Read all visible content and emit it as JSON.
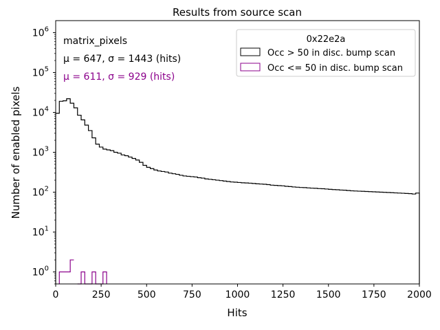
{
  "chart_data": {
    "type": "histogram",
    "title": "Results from source scan",
    "xlabel": "Hits",
    "ylabel": "Number of enabled pixels",
    "xlim": [
      0,
      2000
    ],
    "ylim": [
      0.5,
      2000000
    ],
    "yscale": "log",
    "x_ticks": [
      0,
      250,
      500,
      750,
      1000,
      1250,
      1500,
      1750,
      2000
    ],
    "x_tick_labels": [
      "0",
      "250",
      "500",
      "750",
      "1000",
      "1250",
      "1500",
      "1750",
      "2000"
    ],
    "y_ticks": [
      1,
      10,
      100,
      1000,
      10000,
      100000,
      1000000
    ],
    "y_tick_base": "10",
    "y_tick_exponents": [
      "0",
      "1",
      "2",
      "3",
      "4",
      "5",
      "6"
    ],
    "bin_width": 20,
    "annotations": {
      "name": "matrix_pixels",
      "stats_high": "μ = 647, σ = 1443 (hits)",
      "stats_low": "μ = 611, σ = 929 (hits)"
    },
    "legend": {
      "title": "0x22e2a",
      "position": "top-right"
    },
    "series": [
      {
        "name": "Occ > 50 in disc. bump scan",
        "color": "#000000",
        "bin_edges_start": 0,
        "values": [
          9500,
          19000,
          19500,
          22000,
          17000,
          13000,
          8500,
          6500,
          4800,
          3500,
          2300,
          1600,
          1350,
          1200,
          1150,
          1100,
          1000,
          950,
          860,
          820,
          760,
          700,
          640,
          560,
          470,
          420,
          390,
          360,
          340,
          330,
          320,
          300,
          290,
          280,
          265,
          255,
          250,
          245,
          240,
          230,
          225,
          215,
          210,
          205,
          200,
          195,
          190,
          185,
          180,
          178,
          175,
          172,
          170,
          168,
          165,
          162,
          160,
          158,
          155,
          150,
          148,
          146,
          144,
          140,
          138,
          135,
          133,
          131,
          130,
          128,
          126,
          125,
          123,
          122,
          120,
          118,
          116,
          115,
          113,
          112,
          110,
          108,
          107,
          106,
          105,
          104,
          103,
          102,
          101,
          100,
          99,
          98,
          97,
          96,
          95,
          94,
          93,
          92,
          90,
          95
        ]
      },
      {
        "name": "Occ <= 50 in disc. bump scan",
        "color": "#8b008b",
        "bins": [
          [
            20,
            1
          ],
          [
            40,
            1
          ],
          [
            60,
            1
          ],
          [
            80,
            2
          ],
          [
            120,
            0.5
          ],
          [
            140,
            1
          ],
          [
            160,
            0.5
          ],
          [
            180,
            0.5
          ],
          [
            200,
            1
          ],
          [
            220,
            0.5
          ],
          [
            240,
            0.5
          ],
          [
            260,
            1
          ]
        ]
      }
    ]
  }
}
